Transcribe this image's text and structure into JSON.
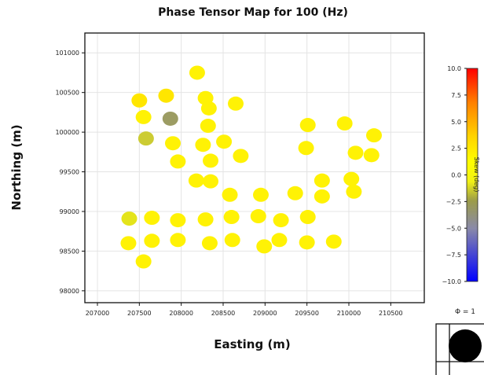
{
  "chart_data": {
    "type": "scatter",
    "title": "Phase Tensor Map for 100 (Hz)",
    "xlabel": "Easting (m)",
    "ylabel": "Northing (m)",
    "xlim": [
      206850,
      210900
    ],
    "ylim": [
      97850,
      101250
    ],
    "xticks": [
      "207000",
      "207500",
      "208000",
      "208500",
      "209000",
      "209500",
      "210000",
      "210500"
    ],
    "yticks": [
      "98000",
      "98500",
      "99000",
      "99500",
      "100000",
      "100500",
      "101000"
    ],
    "grid": true,
    "points": [
      {
        "x": 208190,
        "y": 100750,
        "skew": 0.5
      },
      {
        "x": 207500,
        "y": 100400,
        "skew": 1.0
      },
      {
        "x": 207820,
        "y": 100460,
        "skew": 1.0
      },
      {
        "x": 208290,
        "y": 100430,
        "skew": 0.5
      },
      {
        "x": 208330,
        "y": 100300,
        "skew": 0.5
      },
      {
        "x": 208650,
        "y": 100360,
        "skew": 0.5
      },
      {
        "x": 207550,
        "y": 100190,
        "skew": 0.5
      },
      {
        "x": 207870,
        "y": 100170,
        "skew": -3.5
      },
      {
        "x": 208320,
        "y": 100080,
        "skew": 0.5
      },
      {
        "x": 209510,
        "y": 100090,
        "skew": 0.5
      },
      {
        "x": 209950,
        "y": 100110,
        "skew": 0.5
      },
      {
        "x": 210300,
        "y": 99960,
        "skew": 0.5
      },
      {
        "x": 207580,
        "y": 99920,
        "skew": -1.5
      },
      {
        "x": 207900,
        "y": 99860,
        "skew": 0.5
      },
      {
        "x": 208260,
        "y": 99840,
        "skew": 0.5
      },
      {
        "x": 208510,
        "y": 99880,
        "skew": 0.5
      },
      {
        "x": 209490,
        "y": 99800,
        "skew": 0.5
      },
      {
        "x": 210080,
        "y": 99740,
        "skew": 0.5
      },
      {
        "x": 210270,
        "y": 99710,
        "skew": 0.5
      },
      {
        "x": 207960,
        "y": 99630,
        "skew": 0.5
      },
      {
        "x": 208350,
        "y": 99640,
        "skew": 0.5
      },
      {
        "x": 208710,
        "y": 99700,
        "skew": 0.5
      },
      {
        "x": 208180,
        "y": 99390,
        "skew": 0.5
      },
      {
        "x": 208350,
        "y": 99380,
        "skew": 0.5
      },
      {
        "x": 209680,
        "y": 99390,
        "skew": 0.5
      },
      {
        "x": 210030,
        "y": 99410,
        "skew": 0.5
      },
      {
        "x": 208580,
        "y": 99210,
        "skew": 0.5
      },
      {
        "x": 208950,
        "y": 99210,
        "skew": 0.5
      },
      {
        "x": 209360,
        "y": 99230,
        "skew": 0.5
      },
      {
        "x": 209680,
        "y": 99190,
        "skew": 0.5
      },
      {
        "x": 210060,
        "y": 99250,
        "skew": 0.5
      },
      {
        "x": 207380,
        "y": 98910,
        "skew": -0.5
      },
      {
        "x": 207650,
        "y": 98920,
        "skew": 0.5
      },
      {
        "x": 207960,
        "y": 98890,
        "skew": 0.5
      },
      {
        "x": 208290,
        "y": 98900,
        "skew": 0.5
      },
      {
        "x": 208600,
        "y": 98930,
        "skew": 0.5
      },
      {
        "x": 208920,
        "y": 98940,
        "skew": 0.5
      },
      {
        "x": 209190,
        "y": 98890,
        "skew": 0.5
      },
      {
        "x": 209510,
        "y": 98930,
        "skew": 0.5
      },
      {
        "x": 207370,
        "y": 98600,
        "skew": 0.5
      },
      {
        "x": 207650,
        "y": 98630,
        "skew": 0.5
      },
      {
        "x": 207960,
        "y": 98640,
        "skew": 0.5
      },
      {
        "x": 208340,
        "y": 98600,
        "skew": 0.5
      },
      {
        "x": 208610,
        "y": 98640,
        "skew": 0.5
      },
      {
        "x": 208990,
        "y": 98560,
        "skew": 0.5
      },
      {
        "x": 209170,
        "y": 98640,
        "skew": 0.5
      },
      {
        "x": 209500,
        "y": 98610,
        "skew": 0.5
      },
      {
        "x": 209820,
        "y": 98620,
        "skew": 0.5
      },
      {
        "x": 207550,
        "y": 98370,
        "skew": 0.5
      }
    ],
    "colorbar": {
      "label": "Skew (deg)",
      "min": -10,
      "max": 10,
      "ticks": [
        "10.0",
        "7.5",
        "5.0",
        "2.5",
        "0.0",
        "−2.5",
        "−5.0",
        "−7.5",
        "−10.0"
      ]
    },
    "legend": {
      "label": "Φ = 1"
    }
  }
}
